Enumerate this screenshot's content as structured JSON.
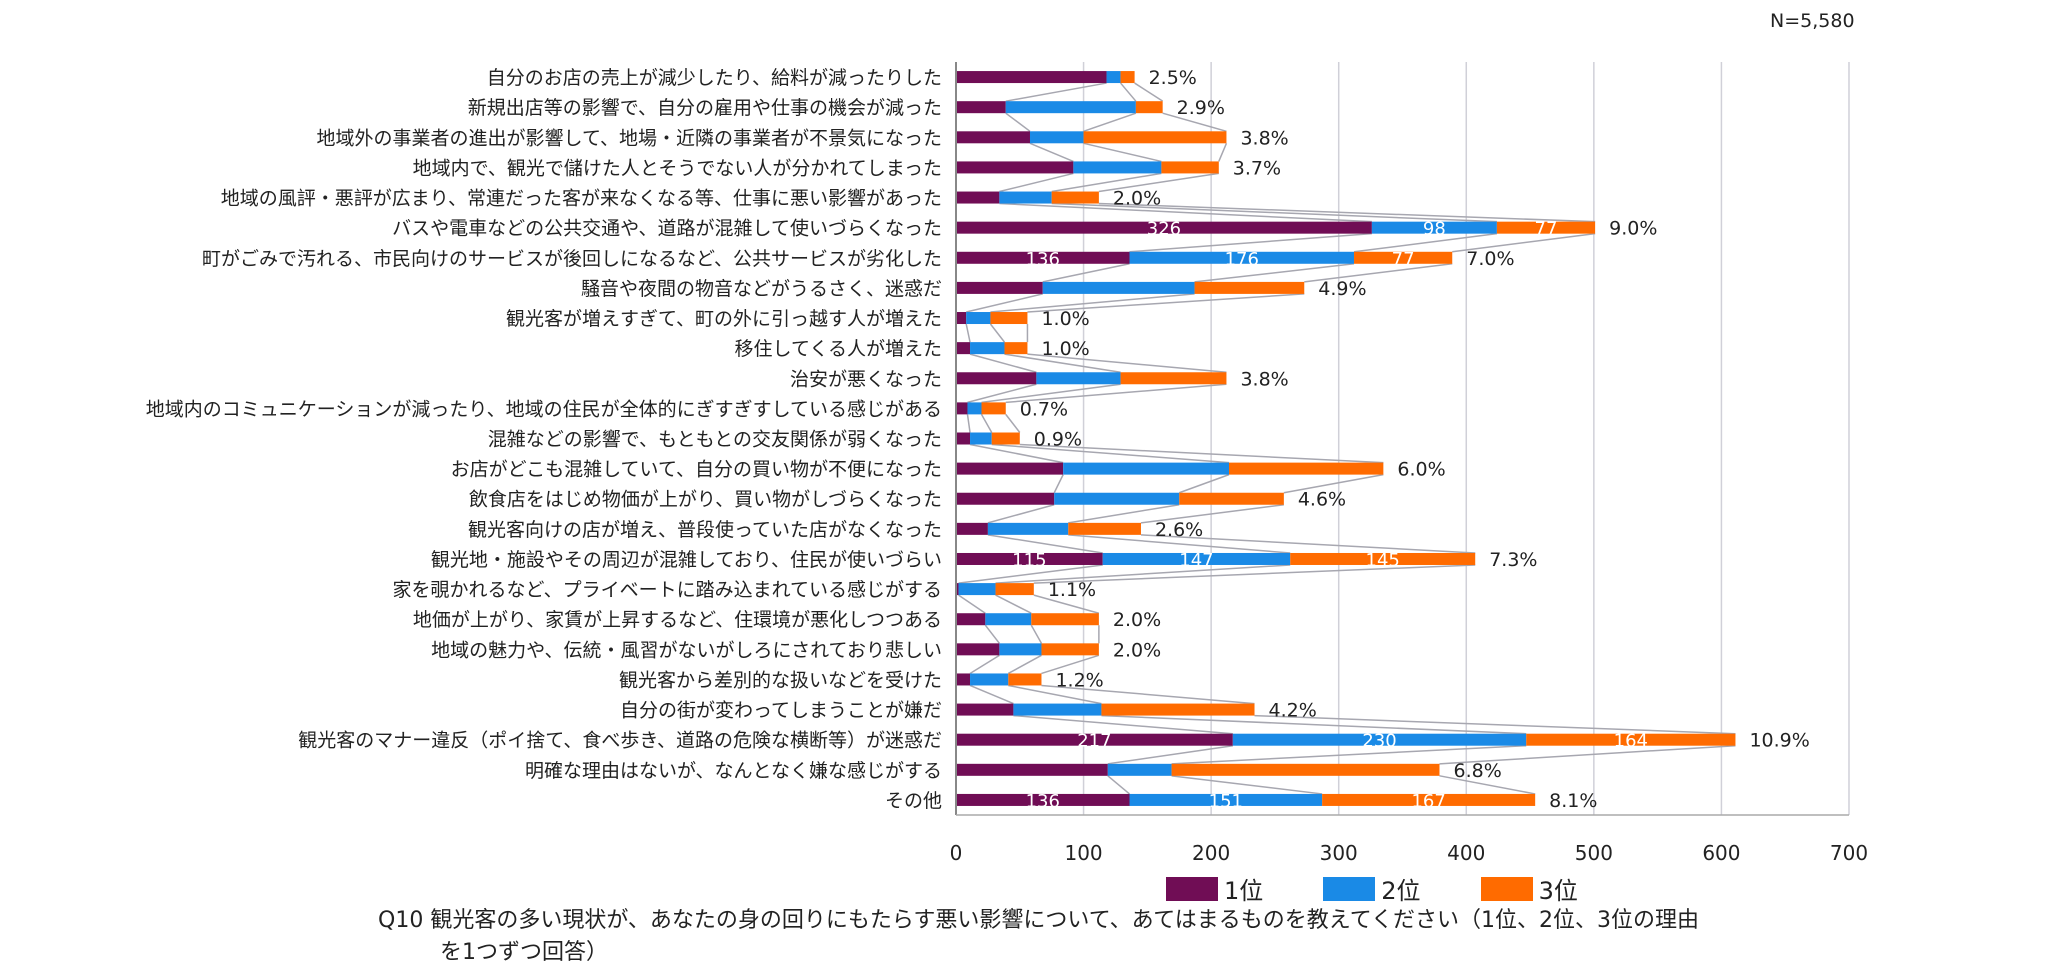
{
  "n_label": "N=5,580",
  "footer": {
    "question_no": "Q10",
    "line1": "観光客の多い現状が、あなたの身の回りにもたらす悪い影響について、あてはまるものを教えてください（1位、2位、3位の理由",
    "line2": "を1つずつ回答）"
  },
  "colors": {
    "rank1": "#700d55",
    "rank2": "#1a8ae6",
    "rank3": "#ff6b00",
    "connector": "#a7a7b0",
    "grid": "#d0d0d8"
  },
  "chart_data": {
    "type": "bar",
    "orientation": "horizontal-stacked",
    "title": "",
    "xlabel": "",
    "ylabel": "",
    "xlim": [
      0,
      700
    ],
    "xticks": [
      0,
      100,
      200,
      300,
      400,
      500,
      600,
      700
    ],
    "grid": true,
    "legend_position": "bottom",
    "series_lines": true,
    "categories": [
      "自分のお店の売上が減少したり、給料が減ったりした",
      "新規出店等の影響で、自分の雇用や仕事の機会が減った",
      "地域外の事業者の進出が影響して、地場・近隣の事業者が不景気になった",
      "地域内で、観光で儲けた人とそうでない人が分かれてしまった",
      "地域の風評・悪評が広まり、常連だった客が来なくなる等、仕事に悪い影響があった",
      "バスや電車などの公共交通や、道路が混雑して使いづらくなった",
      "町がごみで汚れる、市民向けのサービスが後回しになるなど、公共サービスが劣化した",
      "騒音や夜間の物音などがうるさく、迷惑だ",
      "観光客が増えすぎて、町の外に引っ越す人が増えた",
      "移住してくる人が増えた",
      "治安が悪くなった",
      "地域内のコミュニケーションが減ったり、地域の住民が全体的にぎすぎすしている感じがある",
      "混雑などの影響で、もともとの交友関係が弱くなった",
      "お店がどこも混雑していて、自分の買い物が不便になった",
      "飲食店をはじめ物価が上がり、買い物がしづらくなった",
      "観光客向けの店が増え、普段使っていた店がなくなった",
      "観光地・施設やその周辺が混雑しており、住民が使いづらい",
      "家を覗かれるなど、プライベートに踏み込まれている感じがする",
      "地価が上がり、家賃が上昇するなど、住環境が悪化しつつある",
      "地域の魅力や、伝統・風習がないがしろにされており悲しい",
      "観光客から差別的な扱いなどを受けた",
      "自分の街が変わってしまうことが嫌だ",
      "観光客のマナー違反（ポイ捨て、食べ歩き、道路の危険な横断等）が迷惑だ",
      "明確な理由はないが、なんとなく嫌な感じがする",
      "その他"
    ],
    "series": [
      {
        "name": "1位",
        "values": [
          118,
          39,
          58,
          92,
          34,
          326,
          136,
          68,
          8,
          11,
          63,
          9,
          11,
          84,
          77,
          25,
          115,
          2,
          23,
          34,
          11,
          45,
          217,
          119,
          136
        ]
      },
      {
        "name": "2位",
        "values": [
          11,
          102,
          42,
          69,
          41,
          98,
          176,
          119,
          19,
          27,
          66,
          11,
          17,
          130,
          98,
          63,
          147,
          29,
          36,
          33,
          30,
          69,
          230,
          50,
          151
        ]
      },
      {
        "name": "3位",
        "values": [
          11,
          21,
          112,
          45,
          37,
          77,
          77,
          86,
          29,
          18,
          83,
          19,
          22,
          121,
          82,
          57,
          145,
          30,
          53,
          45,
          26,
          120,
          164,
          210,
          167
        ]
      }
    ],
    "value_labels_shown": [
      false,
      false,
      false,
      false,
      false,
      true,
      true,
      false,
      false,
      false,
      false,
      false,
      false,
      false,
      false,
      false,
      true,
      false,
      false,
      false,
      false,
      false,
      true,
      false,
      true
    ],
    "total_percent_labels": [
      "2.5%",
      "2.9%",
      "3.8%",
      "3.7%",
      "2.0%",
      "9.0%",
      "7.0%",
      "4.9%",
      "1.0%",
      "1.0%",
      "3.8%",
      "0.7%",
      "0.9%",
      "6.0%",
      "4.6%",
      "2.6%",
      "7.3%",
      "1.1%",
      "2.0%",
      "2.0%",
      "1.2%",
      "4.2%",
      "10.9%",
      "6.8%",
      "8.1%"
    ]
  }
}
